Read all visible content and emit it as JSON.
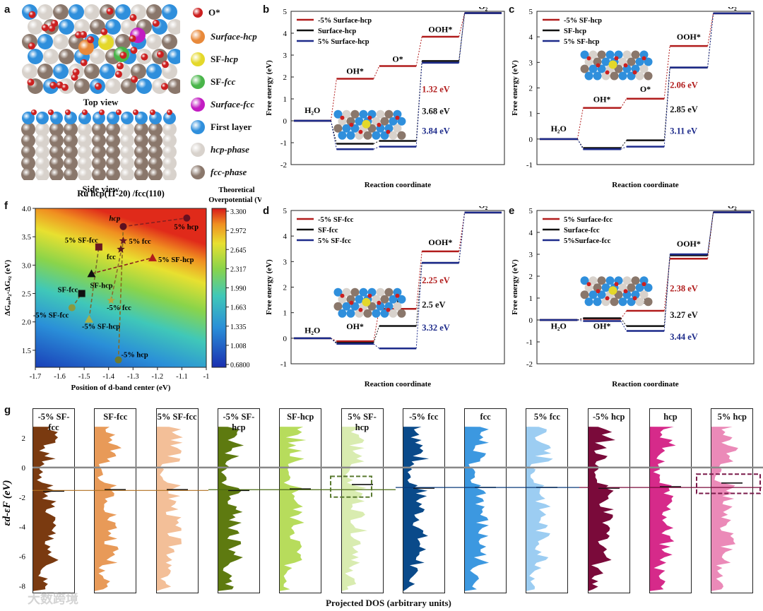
{
  "panel_labels": {
    "a": "a",
    "b": "b",
    "c": "c",
    "d": "d",
    "e": "e",
    "f": "f",
    "g": "g"
  },
  "panel_a": {
    "top_caption": "Top view",
    "side_caption": "Side view",
    "legend": [
      {
        "label": "O*",
        "color": "#cc2020",
        "size": "small"
      },
      {
        "label": "Surface-hcp",
        "color": "#e8893a",
        "size": "big"
      },
      {
        "label": "SF-hcp",
        "color": "#e4d82a",
        "size": "big"
      },
      {
        "label": "SF-fcc",
        "color": "#49b54a",
        "size": "big"
      },
      {
        "label": "Surface-fcc",
        "color": "#c21cc2",
        "size": "big"
      },
      {
        "label": "First layer",
        "color": "#2f8fdc",
        "size": "big"
      },
      {
        "label": "hcp-phase",
        "color": "#d8d2cc",
        "size": "big"
      },
      {
        "label": "fcc-phase",
        "color": "#8a776b",
        "size": "big"
      }
    ]
  },
  "energy_panels": [
    {
      "id": "b",
      "xlabel": "Reaction coordinate",
      "ylabel": "Free energy (eV)",
      "ylim": [
        -2,
        5
      ],
      "yticks": [
        -2,
        -1,
        0,
        1,
        2,
        3,
        4,
        5
      ],
      "steps": [
        "H2O",
        "OH*",
        "O*",
        "OOH*",
        "O2"
      ],
      "step_labels": [
        {
          "text": "H₂O",
          "step": 0,
          "y": 0.35
        },
        {
          "text": "OH*",
          "step": 1,
          "y": 2.15
        },
        {
          "text": "O*",
          "step": 2,
          "y": 2.7
        },
        {
          "text": "OOH*",
          "step": 3,
          "y": 4.05
        },
        {
          "text": "O₂",
          "step": 4,
          "y": 5.1
        }
      ],
      "series": [
        {
          "name": "-5% Surface-hcp",
          "color": "#b11c1c",
          "values": [
            0,
            1.92,
            2.5,
            3.84,
            4.92
          ]
        },
        {
          "name": "Surface-hcp",
          "color": "#111111",
          "values": [
            0,
            -1.05,
            -0.92,
            2.73,
            4.92
          ]
        },
        {
          "name": "5% Surface-hcp",
          "color": "#1c2a8a",
          "values": [
            0,
            -1.3,
            -1.18,
            2.65,
            4.92
          ]
        }
      ],
      "overpotentials": [
        {
          "text": "1.32 eV",
          "color": "#b11c1c",
          "y": 1.3
        },
        {
          "text": "3.68 eV",
          "color": "#111111",
          "y": 0.3
        },
        {
          "text": "3.84 eV",
          "color": "#1c2a8a",
          "y": -0.6
        }
      ]
    },
    {
      "id": "c",
      "xlabel": "Reaction coordinate",
      "ylabel": "Free energy (eV)",
      "ylim": [
        -1,
        5
      ],
      "yticks": [
        -1,
        0,
        1,
        2,
        3,
        4,
        5
      ],
      "steps": [
        "H2O",
        "OH*",
        "O*",
        "OOH*",
        "O2"
      ],
      "step_labels": [
        {
          "text": "H₂O",
          "step": 0,
          "y": 0.3
        },
        {
          "text": "OH*",
          "step": 1,
          "y": 1.45
        },
        {
          "text": "O*",
          "step": 2,
          "y": 1.85
        },
        {
          "text": "OOH*",
          "step": 3,
          "y": 3.9
        },
        {
          "text": "O₂",
          "step": 4,
          "y": 5.1
        }
      ],
      "series": [
        {
          "name": "-5% SF-hcp",
          "color": "#b11c1c",
          "values": [
            0,
            1.22,
            1.58,
            3.64,
            4.92
          ]
        },
        {
          "name": "SF-hcp",
          "color": "#111111",
          "values": [
            0,
            -0.35,
            -0.05,
            2.8,
            4.92
          ]
        },
        {
          "name": "5% SF-hcp",
          "color": "#1c2a8a",
          "values": [
            0,
            -0.4,
            -0.3,
            2.8,
            4.92
          ]
        }
      ],
      "overpotentials": [
        {
          "text": "2.06 eV",
          "color": "#b11c1c",
          "y": 2.0
        },
        {
          "text": "2.85 eV",
          "color": "#111111",
          "y": 1.05
        },
        {
          "text": "3.11 eV",
          "color": "#1c2a8a",
          "y": 0.2
        }
      ]
    },
    {
      "id": "d",
      "xlabel": "Reaction coordinate",
      "ylabel": "Free energy (eV)",
      "ylim": [
        -1,
        5
      ],
      "yticks": [
        -1,
        0,
        1,
        2,
        3,
        4,
        5
      ],
      "steps": [
        "H2O",
        "OH*",
        "O*",
        "OOH*",
        "O2"
      ],
      "step_labels": [
        {
          "text": "H₂O",
          "step": 0,
          "y": 0.2
        },
        {
          "text": "OH*",
          "step": 1,
          "y": 0.35
        },
        {
          "text": "O*",
          "step": 2,
          "y": 1.35
        },
        {
          "text": "OOH*",
          "step": 3,
          "y": 3.65
        },
        {
          "text": "O₂",
          "step": 4,
          "y": 5.1
        }
      ],
      "series": [
        {
          "name": "-5% SF-fcc",
          "color": "#b11c1c",
          "values": [
            0,
            -0.12,
            1.15,
            3.4,
            4.92
          ]
        },
        {
          "name": "SF-fcc",
          "color": "#111111",
          "values": [
            0,
            -0.18,
            0.48,
            2.95,
            4.92
          ]
        },
        {
          "name": "5% SF-fcc",
          "color": "#1c2a8a",
          "values": [
            0,
            -0.22,
            -0.4,
            2.95,
            4.92
          ]
        }
      ],
      "overpotentials": [
        {
          "text": "2.25 eV",
          "color": "#b11c1c",
          "y": 2.15
        },
        {
          "text": "2.5 eV",
          "color": "#111111",
          "y": 1.2
        },
        {
          "text": "3.32 eV",
          "color": "#1c2a8a",
          "y": 0.3
        }
      ]
    },
    {
      "id": "e",
      "xlabel": "Reaction coordinate",
      "ylabel": "Free energy (eV)",
      "ylim": [
        -2,
        5
      ],
      "yticks": [
        -2,
        -1,
        0,
        1,
        2,
        3,
        4,
        5
      ],
      "steps": [
        "H2O",
        "OH*",
        "O*",
        "OOH*",
        "O2"
      ],
      "step_labels": [
        {
          "text": "H₂O",
          "step": 0,
          "y": -0.4
        },
        {
          "text": "OH*",
          "step": 1,
          "y": -0.4
        },
        {
          "text": "O*",
          "step": 2,
          "y": 0.75
        },
        {
          "text": "OOH*",
          "step": 3,
          "y": 3.35
        },
        {
          "text": "O₂",
          "step": 4,
          "y": 5.1
        }
      ],
      "series": [
        {
          "name": "5% Surface-fcc",
          "color": "#b11c1c",
          "values": [
            0,
            0.05,
            0.42,
            2.8,
            4.92
          ]
        },
        {
          "name": "Surface-fcc",
          "color": "#111111",
          "values": [
            0,
            0.08,
            -0.28,
            2.95,
            4.92
          ]
        },
        {
          "name": "5%Surface-fcc",
          "color": "#1c2a8a",
          "values": [
            0,
            -0.05,
            -0.5,
            3.0,
            4.92
          ]
        }
      ],
      "overpotentials": [
        {
          "text": "2.38 eV",
          "color": "#b11c1c",
          "y": 1.3
        },
        {
          "text": "3.27 eV",
          "color": "#111111",
          "y": 0.1
        },
        {
          "text": "3.44 eV",
          "color": "#1c2a8a",
          "y": -0.9
        }
      ]
    }
  ],
  "panel_f": {
    "title": "Ru hcp(11-20) /fcc(110)",
    "xlabel": "Position of d-band center (eV)",
    "ylabel": "ΔGₒₒₕ₂-ΔGₒ₂ (eV)",
    "xlim": [
      -1.7,
      -1.0
    ],
    "ylim": [
      1.2,
      4.0
    ],
    "xticks": [
      -1.7,
      -1.6,
      -1.5,
      -1.4,
      -1.3,
      -1.2,
      -1.1,
      -1.0
    ],
    "yticks": [
      1.5,
      2.0,
      2.5,
      3.0,
      3.5,
      4.0
    ],
    "colorbar": {
      "title": "Theoretical Overpotential (V)",
      "ticks": [
        "3.300",
        "2.972",
        "2.645",
        "2.317",
        "1.990",
        "1.663",
        "1.335",
        "1.008",
        "0.6800"
      ]
    },
    "points": [
      {
        "label": "hcp",
        "x": -1.34,
        "y": 3.68,
        "shape": "circle",
        "color": "#5b1020",
        "italic": true
      },
      {
        "label": "5% hcp",
        "x": -1.08,
        "y": 3.83,
        "shape": "circle",
        "color": "#6a1020"
      },
      {
        "label": "-5% hcp",
        "x": -1.36,
        "y": 1.33,
        "shape": "circle",
        "color": "#6d7a30"
      },
      {
        "label": "5% SF-fcc",
        "x": -1.44,
        "y": 3.32,
        "shape": "square",
        "color": "#6a1822"
      },
      {
        "label": "SF-fcc",
        "x": -1.51,
        "y": 2.5,
        "shape": "square",
        "color": "#111111"
      },
      {
        "label": "-5% SF-fcc",
        "x": -1.55,
        "y": 2.25,
        "shape": "circle",
        "color": "#8a9a40"
      },
      {
        "label": "5% fcc",
        "x": -1.34,
        "y": 3.43,
        "shape": "star",
        "color": "#6a1822"
      },
      {
        "label": "fcc",
        "x": -1.35,
        "y": 3.28,
        "shape": "star",
        "color": "#5a1820"
      },
      {
        "label": "-5% fcc",
        "x": -1.39,
        "y": 2.38,
        "shape": "star",
        "color": "#b0a840"
      },
      {
        "label": "5% SF-hcp",
        "x": -1.22,
        "y": 3.13,
        "shape": "triangle",
        "color": "#b11c1c"
      },
      {
        "label": "SF-hcp",
        "x": -1.47,
        "y": 2.85,
        "shape": "triangle",
        "color": "#111111"
      },
      {
        "label": "-5% SF-hcp",
        "x": -1.48,
        "y": 2.05,
        "shape": "triangle",
        "color": "#a8b048"
      }
    ],
    "trend_lines": [
      {
        "color": "#8a2020",
        "from": [
          -1.34,
          3.68
        ],
        "to": [
          -1.08,
          3.83
        ]
      },
      {
        "color": "#8a6a20",
        "from": [
          -1.34,
          3.68
        ],
        "to": [
          -1.36,
          1.33
        ]
      },
      {
        "color": "#8a2020",
        "from": [
          -1.47,
          2.85
        ],
        "to": [
          -1.22,
          3.13
        ]
      },
      {
        "color": "#7a6a30",
        "from": [
          -1.48,
          2.05
        ],
        "to": [
          -1.44,
          3.32
        ]
      },
      {
        "color": "#7a6a30",
        "from": [
          -1.55,
          2.25
        ],
        "to": [
          -1.51,
          2.5
        ]
      },
      {
        "color": "#8a6a30",
        "from": [
          -1.39,
          2.38
        ],
        "to": [
          -1.34,
          3.43
        ]
      }
    ]
  },
  "panel_g": {
    "ylabel": "εd-εF (eV)",
    "xlabel": "Projected DOS  (arbitrary units)",
    "yticks": [
      2,
      0,
      -2,
      -4,
      -6,
      -8
    ],
    "ylim": [
      -8.5,
      4
    ],
    "watermark": "大数跨境",
    "strips": [
      {
        "title": "-5% SF-fcc",
        "color": "#7a3a10",
        "center": -1.55,
        "seed": 1
      },
      {
        "title": "SF-fcc",
        "color": "#e89a58",
        "center": -1.45,
        "seed": 2
      },
      {
        "title": "5% SF-fcc",
        "color": "#f3bf98",
        "center": -1.45,
        "seed": 3
      },
      {
        "title": "-5% SF-hcp",
        "color": "#5e7a10",
        "center": -1.5,
        "seed": 4
      },
      {
        "title": "SF-hcp",
        "color": "#b7dc5c",
        "center": -1.4,
        "seed": 5
      },
      {
        "title": "5% SF-hcp",
        "color": "#d9ecb0",
        "center": -1.1,
        "seed": 6
      },
      {
        "title": "-5% fcc",
        "color": "#0a4a8a",
        "center": -1.35,
        "seed": 7
      },
      {
        "title": "fcc",
        "color": "#3c98e0",
        "center": -1.3,
        "seed": 8
      },
      {
        "title": "5% fcc",
        "color": "#9ccdf2",
        "center": -1.3,
        "seed": 9
      },
      {
        "title": "-5% hcp",
        "color": "#7a0a3a",
        "center": -1.35,
        "seed": 10
      },
      {
        "title": "hcp",
        "color": "#d62a8a",
        "center": -1.25,
        "seed": 11
      },
      {
        "title": "5% hcp",
        "color": "#eb8ab8",
        "center": -1.0,
        "seed": 12
      }
    ]
  }
}
